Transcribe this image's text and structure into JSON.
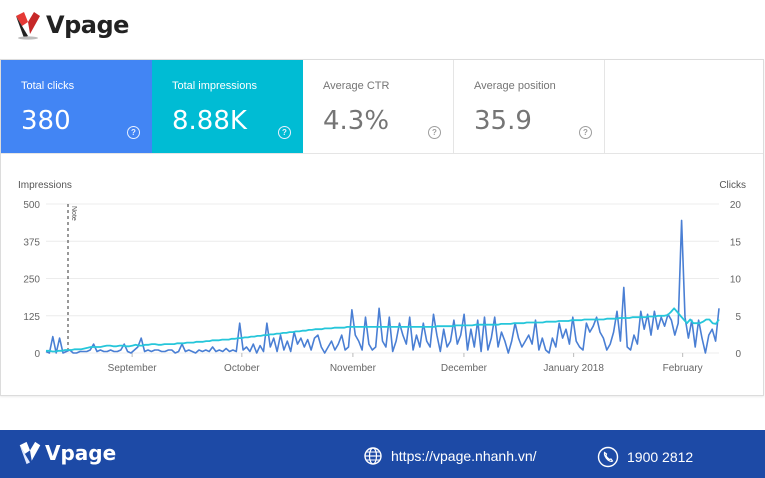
{
  "header": {
    "brand": "Vpage"
  },
  "metrics": [
    {
      "label": "Total clicks",
      "value": "380",
      "help": "?"
    },
    {
      "label": "Total impressions",
      "value": "8.88K",
      "help": "?"
    },
    {
      "label": "Average CTR",
      "value": "4.3%",
      "help": "?"
    },
    {
      "label": "Average position",
      "value": "35.9",
      "help": "?"
    }
  ],
  "chart_data": {
    "type": "line",
    "ylabel_left": "Impressions",
    "ylabel_right": "Clicks",
    "y_left_ticks": [
      "500",
      "375",
      "250",
      "125",
      "0"
    ],
    "y_right_ticks": [
      "20",
      "15",
      "10",
      "5",
      "0"
    ],
    "ylim_left": [
      0,
      500
    ],
    "ylim_right": [
      0,
      20
    ],
    "x_ticks": [
      "September",
      "October",
      "November",
      "December",
      "January 2018",
      "February"
    ],
    "annotation": "Note",
    "grid": true,
    "series": [
      {
        "axis": "left",
        "color": "#4a7fd4",
        "values": [
          5,
          0,
          55,
          0,
          50,
          0,
          5,
          10,
          0,
          0,
          5,
          5,
          5,
          10,
          30,
          5,
          10,
          5,
          5,
          10,
          5,
          5,
          10,
          30,
          5,
          0,
          10,
          20,
          50,
          5,
          10,
          5,
          10,
          10,
          5,
          5,
          10,
          10,
          0,
          5,
          30,
          5,
          10,
          5,
          0,
          10,
          5,
          10,
          5,
          20,
          5,
          10,
          5,
          15,
          5,
          10,
          5,
          100,
          10,
          20,
          5,
          30,
          0,
          25,
          5,
          100,
          20,
          50,
          5,
          60,
          10,
          40,
          5,
          70,
          30,
          50,
          20,
          45,
          10,
          50,
          60,
          20,
          0,
          20,
          40,
          10,
          30,
          60,
          10,
          20,
          145,
          60,
          40,
          10,
          120,
          30,
          10,
          20,
          150,
          40,
          20,
          120,
          5,
          40,
          100,
          60,
          30,
          120,
          10,
          60,
          20,
          100,
          40,
          20,
          130,
          60,
          5,
          80,
          20,
          40,
          110,
          30,
          60,
          130,
          10,
          80,
          20,
          110,
          5,
          120,
          10,
          50,
          120,
          20,
          70,
          40,
          0,
          40,
          100,
          50,
          20,
          40,
          60,
          30,
          110,
          10,
          50,
          10,
          0,
          50,
          20,
          100,
          50,
          80,
          30,
          120,
          40,
          20,
          10,
          100,
          70,
          90,
          120,
          70,
          50,
          10,
          30,
          70,
          140,
          40,
          220,
          20,
          10,
          60,
          30,
          140,
          80,
          130,
          60,
          140,
          80,
          120,
          90,
          130,
          110,
          60,
          100,
          445,
          120,
          50,
          110,
          20,
          110,
          50,
          0,
          60,
          80,
          40,
          150
        ]
      },
      {
        "axis": "right",
        "color": "#26c6da",
        "values": [
          0.3,
          0.3,
          0.2,
          0.2,
          0.3,
          0.3,
          0.4,
          0.4,
          0.4,
          0.5,
          0.5,
          0.5,
          0.6,
          0.7,
          0.8,
          0.8,
          0.8,
          0.8,
          0.9,
          1.0,
          1.0,
          0.9,
          0.9,
          1.0,
          1.0,
          0.9,
          0.9,
          1.0,
          1.1,
          1.0,
          1.0,
          1.1,
          1.1,
          1.2,
          1.2,
          1.1,
          1.1,
          1.2,
          1.2,
          1.2,
          1.2,
          1.3,
          1.3,
          1.3,
          1.4,
          1.4,
          1.4,
          1.5,
          1.5,
          1.5,
          1.6,
          1.6,
          1.7,
          1.7,
          1.7,
          1.8,
          1.8,
          1.8,
          1.9,
          1.9,
          2.0,
          2.0,
          2.1,
          2.1,
          2.2,
          2.2,
          2.3,
          2.3,
          2.4,
          2.4,
          2.5,
          2.5,
          2.6,
          2.6,
          2.7,
          2.7,
          2.8,
          2.8,
          2.9,
          2.9,
          3.0,
          3.0,
          3.1,
          3.1,
          3.2,
          3.2,
          3.2,
          3.3,
          3.3,
          3.3,
          3.4,
          3.4,
          3.4,
          3.4,
          3.5,
          3.5,
          3.5,
          3.5,
          3.5,
          3.5,
          3.5,
          3.5,
          3.5,
          3.5,
          3.5,
          3.5,
          3.5,
          3.5,
          3.5,
          3.5,
          3.5,
          3.5,
          3.5,
          3.5,
          3.5,
          3.5,
          3.5,
          3.5,
          3.5,
          3.5,
          3.5,
          3.5,
          3.6,
          3.6,
          3.6,
          3.6,
          3.6,
          3.6,
          3.7,
          3.7,
          3.7,
          3.7,
          3.7,
          3.7,
          3.8,
          3.8,
          3.8,
          3.8,
          3.8,
          3.8,
          3.8,
          3.8,
          3.9,
          3.9,
          3.9,
          3.9,
          4.0,
          4.0,
          4.0,
          4.0,
          4.1,
          4.1,
          4.1,
          4.1,
          4.1,
          4.1,
          4.2,
          4.2,
          4.2,
          4.2,
          4.3,
          4.3,
          4.3,
          4.3,
          4.4,
          4.4,
          4.4,
          4.4,
          4.5,
          4.5,
          4.5,
          4.5,
          4.5,
          4.5,
          4.5,
          4.6,
          4.6,
          4.6,
          4.6,
          4.7,
          4.7,
          4.7,
          4.7,
          4.8,
          4.8,
          4.8,
          4.8,
          4.8,
          4.9,
          4.9,
          4.9,
          5.0,
          5.0,
          5.0,
          5.1,
          5.5,
          6.0,
          5.5,
          5.0,
          4.5,
          4.0,
          4.5,
          4.0,
          4.0,
          4.0,
          4.2,
          4.5,
          4.5,
          4.0,
          3.9,
          4.5
        ]
      }
    ]
  },
  "footer": {
    "brand": "Vpage",
    "url": "https://vpage.nhanh.vn/",
    "phone": "1900 2812"
  }
}
